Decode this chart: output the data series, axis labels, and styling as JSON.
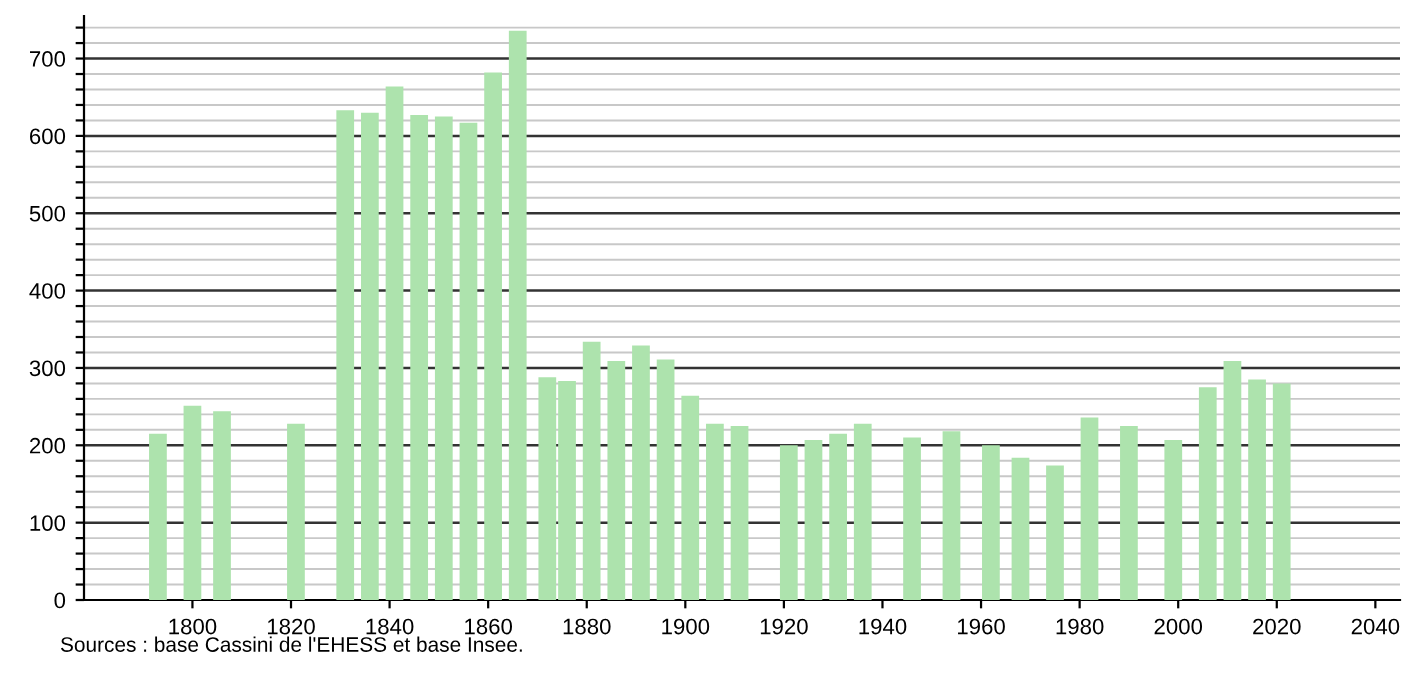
{
  "chart_data": {
    "type": "bar",
    "x": [
      1793,
      1800,
      1806,
      1821,
      1831,
      1836,
      1841,
      1846,
      1851,
      1856,
      1861,
      1866,
      1872,
      1876,
      1881,
      1886,
      1891,
      1896,
      1901,
      1906,
      1911,
      1921,
      1926,
      1931,
      1936,
      1946,
      1954,
      1962,
      1968,
      1975,
      1982,
      1990,
      1999,
      2006,
      2011,
      2016,
      2021
    ],
    "values": [
      215,
      251,
      244,
      228,
      633,
      630,
      664,
      627,
      625,
      617,
      682,
      736,
      288,
      283,
      334,
      309,
      329,
      311,
      264,
      228,
      225,
      200,
      207,
      215,
      228,
      210,
      218,
      200,
      184,
      174,
      236,
      225,
      207,
      275,
      309,
      285,
      280
    ],
    "color": "#ade3ad",
    "xlim": [
      1778,
      2045
    ],
    "xticks": [
      1800,
      1820,
      1840,
      1860,
      1880,
      1900,
      1920,
      1940,
      1960,
      1980,
      2000,
      2020,
      2040
    ],
    "ylim": [
      0,
      755
    ],
    "yticks": [
      0,
      {
        "value": 20,
        "label": null
      },
      {
        "value": 40,
        "label": null
      },
      {
        "value": 60,
        "label": null
      },
      {
        "value": 80,
        "label": null
      },
      100,
      {
        "value": 120,
        "label": null
      },
      {
        "value": 140,
        "label": null
      },
      {
        "value": 160,
        "label": null
      },
      {
        "value": 180,
        "label": null
      },
      200,
      {
        "value": 220,
        "label": null
      },
      {
        "value": 240,
        "label": null
      },
      {
        "value": 260,
        "label": null
      },
      {
        "value": 280,
        "label": null
      },
      300,
      {
        "value": 320,
        "label": null
      },
      {
        "value": 340,
        "label": null
      },
      {
        "value": 360,
        "label": null
      },
      {
        "value": 380,
        "label": null
      },
      400,
      {
        "value": 420,
        "label": null
      },
      {
        "value": 440,
        "label": null
      },
      {
        "value": 460,
        "label": null
      },
      {
        "value": 480,
        "label": null
      },
      500,
      {
        "value": 520,
        "label": null
      },
      {
        "value": 540,
        "label": null
      },
      {
        "value": 560,
        "label": null
      },
      {
        "value": 580,
        "label": null
      },
      600,
      {
        "value": 620,
        "label": null
      },
      {
        "value": 640,
        "label": null
      },
      {
        "value": 660,
        "label": null
      },
      {
        "value": 680,
        "label": null
      },
      700,
      {
        "value": 720,
        "label": null
      },
      {
        "value": 740,
        "label": null
      }
    ],
    "grid": "y",
    "annotations": [
      "Sources : base Cassini de l'EHESS et base Insee."
    ]
  }
}
